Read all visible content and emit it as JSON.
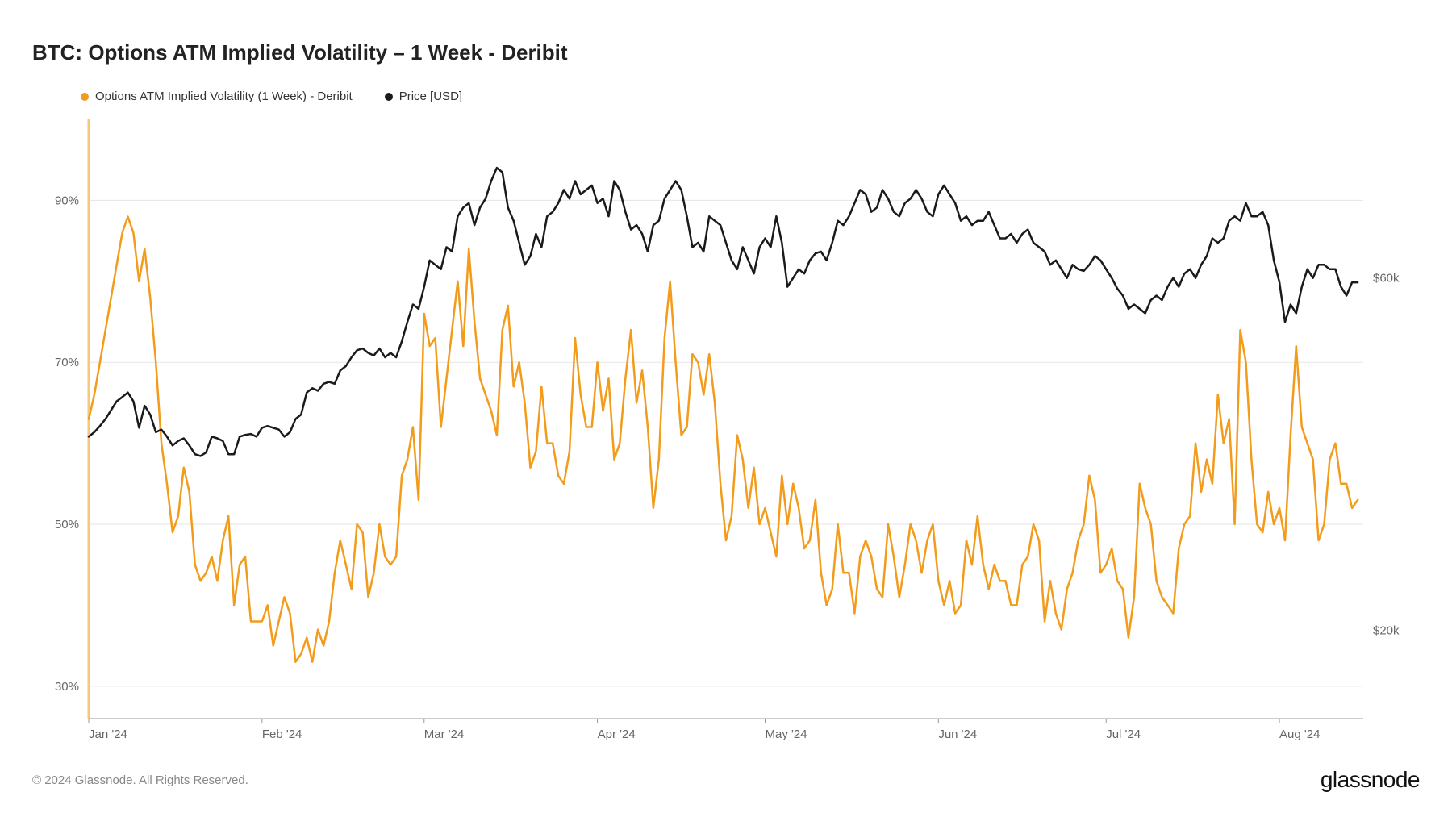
{
  "title": "BTC: Options ATM Implied Volatility – 1 Week - Deribit",
  "copyright": "© 2024 Glassnode. All Rights Reserved.",
  "brand": "glassnode",
  "legend": {
    "series1": {
      "label": "Options ATM Implied Volatility (1 Week) - Deribit",
      "color": "#f39b1b"
    },
    "series2": {
      "label": "Price [USD]",
      "color": "#1a1a1a"
    }
  },
  "chart": {
    "type": "line",
    "background_color": "#ffffff",
    "grid_color": "#e5e5e5",
    "axis_color": "#999999",
    "font_size_axis": 15,
    "axis_label_color": "#666666",
    "line_width": 2.5,
    "x_axis": {
      "labels": [
        "Jan '24",
        "Feb '24",
        "Mar '24",
        "Apr '24",
        "May '24",
        "Jun '24",
        "Jul '24",
        "Aug '24"
      ],
      "tick_positions": [
        0,
        31,
        60,
        91,
        121,
        152,
        182,
        213
      ],
      "domain": [
        0,
        228
      ]
    },
    "y_left": {
      "label_suffix": "%",
      "ticks": [
        30,
        50,
        70,
        90
      ],
      "domain": [
        26,
        100
      ]
    },
    "y_right": {
      "label_prefix": "$",
      "label_suffix": "k",
      "ticks": [
        20,
        60
      ],
      "domain": [
        10,
        78
      ]
    },
    "series_volatility": {
      "color": "#f39b1b",
      "line_width": 2.5,
      "data": [
        63,
        66,
        70,
        74,
        78,
        82,
        86,
        88,
        86,
        80,
        84,
        78,
        70,
        60,
        55,
        49,
        51,
        57,
        54,
        45,
        43,
        44,
        46,
        43,
        48,
        51,
        40,
        45,
        46,
        38,
        38,
        38,
        40,
        35,
        38,
        41,
        39,
        33,
        34,
        36,
        33,
        37,
        35,
        38,
        44,
        48,
        45,
        42,
        50,
        49,
        41,
        44,
        50,
        46,
        45,
        46,
        56,
        58,
        62,
        53,
        76,
        72,
        73,
        62,
        68,
        74,
        80,
        72,
        84,
        75,
        68,
        66,
        64,
        61,
        74,
        77,
        67,
        70,
        65,
        57,
        59,
        67,
        60,
        60,
        56,
        55,
        59,
        73,
        66,
        62,
        62,
        70,
        64,
        68,
        58,
        60,
        68,
        74,
        65,
        69,
        62,
        52,
        58,
        73,
        80,
        70,
        61,
        62,
        71,
        70,
        66,
        71,
        65,
        55,
        48,
        51,
        61,
        58,
        52,
        57,
        50,
        52,
        49,
        46,
        56,
        50,
        55,
        52,
        47,
        48,
        53,
        44,
        40,
        42,
        50,
        44,
        44,
        39,
        46,
        48,
        46,
        42,
        41,
        50,
        46,
        41,
        45,
        50,
        48,
        44,
        48,
        50,
        43,
        40,
        43,
        39,
        40,
        48,
        45,
        51,
        45,
        42,
        45,
        43,
        43,
        40,
        40,
        45,
        46,
        50,
        48,
        38,
        43,
        39,
        37,
        42,
        44,
        48,
        50,
        56,
        53,
        44,
        45,
        47,
        43,
        42,
        36,
        41,
        55,
        52,
        50,
        43,
        41,
        40,
        39,
        47,
        50,
        51,
        60,
        54,
        58,
        55,
        66,
        60,
        63,
        50,
        74,
        70,
        58,
        50,
        49,
        54,
        50,
        52,
        48,
        61,
        72,
        62,
        60,
        58,
        48,
        50,
        58,
        60,
        55,
        55,
        52,
        53
      ]
    },
    "series_price": {
      "color": "#1a1a1a",
      "line_width": 2.5,
      "data": [
        42.0,
        42.5,
        43.2,
        44.0,
        45.0,
        46.0,
        46.5,
        47.0,
        46.0,
        43.0,
        45.5,
        44.5,
        42.5,
        42.8,
        42.0,
        41.0,
        41.5,
        41.8,
        41.0,
        40.0,
        39.8,
        40.2,
        42.0,
        41.8,
        41.5,
        40.0,
        40.0,
        42.0,
        42.2,
        42.3,
        42.0,
        43.0,
        43.2,
        43.0,
        42.8,
        42.0,
        42.5,
        44.0,
        44.5,
        47.0,
        47.5,
        47.2,
        48.0,
        48.2,
        48.0,
        49.5,
        50.0,
        51.0,
        51.8,
        52.0,
        51.5,
        51.2,
        52.0,
        51.0,
        51.5,
        51.0,
        52.8,
        55.0,
        57.0,
        56.5,
        59.0,
        62.0,
        61.5,
        61.0,
        63.5,
        63.0,
        67.0,
        68.0,
        68.5,
        66.0,
        68.0,
        69.0,
        71.0,
        72.5,
        72.0,
        68.0,
        66.5,
        64.0,
        61.5,
        62.5,
        65.0,
        63.5,
        67.0,
        67.5,
        68.5,
        70.0,
        69.0,
        71.0,
        69.5,
        70.0,
        70.5,
        68.5,
        69.0,
        67.0,
        71.0,
        70.0,
        67.5,
        65.5,
        66.0,
        65.0,
        63.0,
        66.0,
        66.5,
        69.0,
        70.0,
        71.0,
        70.0,
        67.0,
        63.5,
        64.0,
        63.0,
        67.0,
        66.5,
        66.0,
        64.0,
        62.0,
        61.0,
        63.5,
        62.0,
        60.5,
        63.5,
        64.5,
        63.5,
        67.0,
        64.0,
        59.0,
        60.0,
        61.0,
        60.5,
        62.0,
        62.8,
        63.0,
        62.0,
        64.0,
        66.5,
        66.0,
        67.0,
        68.5,
        70.0,
        69.5,
        67.5,
        68.0,
        70.0,
        69.0,
        67.5,
        67.0,
        68.5,
        69.0,
        70.0,
        69.0,
        67.5,
        67.0,
        69.5,
        70.5,
        69.5,
        68.5,
        66.5,
        67.0,
        66.0,
        66.5,
        66.5,
        67.5,
        66.0,
        64.5,
        64.5,
        65.0,
        64.0,
        65.0,
        65.5,
        64.0,
        63.5,
        63.0,
        61.5,
        62.0,
        61.0,
        60.0,
        61.5,
        61.0,
        60.8,
        61.5,
        62.5,
        62.0,
        61.0,
        60.0,
        58.8,
        58.0,
        56.5,
        57.0,
        56.5,
        56.0,
        57.5,
        58.0,
        57.5,
        59.0,
        60.0,
        59.0,
        60.5,
        61.0,
        60.0,
        61.5,
        62.5,
        64.5,
        64.0,
        64.5,
        66.5,
        67.0,
        66.5,
        68.5,
        67.0,
        67.0,
        67.5,
        66.0,
        62.0,
        59.5,
        55.0,
        57.0,
        56.0,
        59.0,
        61.0,
        60.0,
        61.5,
        61.5,
        61.0,
        61.0,
        59.0,
        58.0,
        59.5,
        59.5
      ]
    }
  }
}
